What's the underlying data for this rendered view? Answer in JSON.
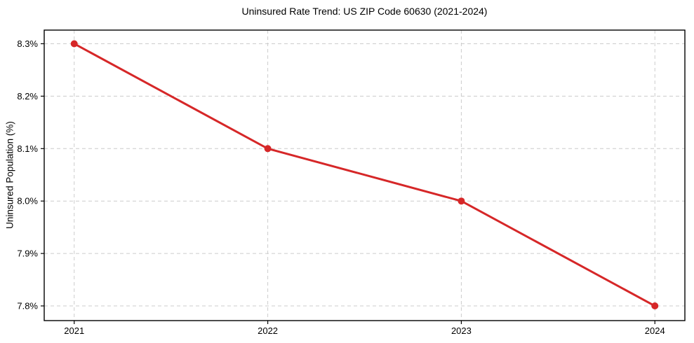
{
  "chart_data": {
    "type": "line",
    "title": "Uninsured Rate Trend: US ZIP Code 60630 (2021-2024)",
    "xlabel": "",
    "ylabel": "Uninsured Population (%)",
    "x": [
      2021,
      2022,
      2023,
      2024
    ],
    "values": [
      8.3,
      8.1,
      8.0,
      7.8
    ],
    "xticks": [
      2021,
      2022,
      2023,
      2024
    ],
    "xtick_labels": [
      "2021",
      "2022",
      "2023",
      "2024"
    ],
    "yticks": [
      7.8,
      7.9,
      8.0,
      8.1,
      8.2,
      8.3
    ],
    "ytick_labels": [
      "7.8%",
      "7.9%",
      "8.0%",
      "8.1%",
      "8.2%",
      "8.3%"
    ],
    "xlim": [
      2020.845,
      2024.155
    ],
    "ylim": [
      7.772,
      8.326
    ],
    "grid": true,
    "legend": false,
    "line_color": "#d62728",
    "marker": "circle",
    "marker_radius": 5,
    "grid_color": "#cccccc",
    "background": "#ffffff"
  }
}
